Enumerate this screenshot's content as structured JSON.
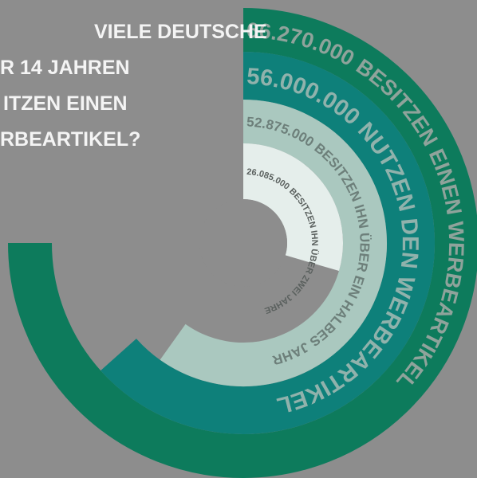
{
  "chart_data": {
    "type": "radial_bar",
    "title_lines": [
      "VIELE DEUTSCHE",
      "R 14 JAHREN",
      "ITZEN EINEN",
      "RBEARTIKEL?"
    ],
    "categories": [
      "BESITZEN EINEN WERBEARTIKEL",
      "NUTZEN DEN WERBEARTIKEL",
      "BESITZEN IHN ÜBER EIN HALBES JAHR",
      "BESITZEN IHN ÜBER ZWEI JAHRE"
    ],
    "values": [
      66270000,
      56000000,
      52875000,
      26085000
    ],
    "value_labels": [
      "66.270.000",
      "56.000.000",
      "52.875.000",
      "26.085.000"
    ],
    "colors": [
      "#0d7b5c",
      "#0e807a",
      "#aac8bf",
      "#e5eeeb"
    ],
    "ylim": [
      0,
      66270000
    ]
  }
}
